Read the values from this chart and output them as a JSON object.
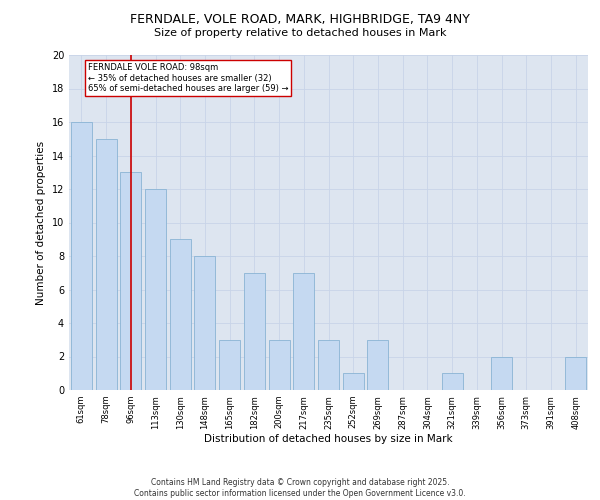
{
  "title_line1": "FERNDALE, VOLE ROAD, MARK, HIGHBRIDGE, TA9 4NY",
  "title_line2": "Size of property relative to detached houses in Mark",
  "xlabel": "Distribution of detached houses by size in Mark",
  "ylabel": "Number of detached properties",
  "categories": [
    "61sqm",
    "78sqm",
    "96sqm",
    "113sqm",
    "130sqm",
    "148sqm",
    "165sqm",
    "182sqm",
    "200sqm",
    "217sqm",
    "235sqm",
    "252sqm",
    "269sqm",
    "287sqm",
    "304sqm",
    "321sqm",
    "339sqm",
    "356sqm",
    "373sqm",
    "391sqm",
    "408sqm"
  ],
  "values": [
    16,
    15,
    13,
    12,
    9,
    8,
    3,
    7,
    3,
    7,
    3,
    1,
    3,
    0,
    0,
    1,
    0,
    2,
    0,
    0,
    2
  ],
  "bar_color": "#c5d9f1",
  "bar_edge_color": "#8ab4d4",
  "vline_x_index": 2,
  "vline_color": "#cc0000",
  "annotation_text": "FERNDALE VOLE ROAD: 98sqm\n← 35% of detached houses are smaller (32)\n65% of semi-detached houses are larger (59) →",
  "annotation_box_color": "white",
  "annotation_box_edge": "#cc0000",
  "ylim": [
    0,
    20
  ],
  "yticks": [
    0,
    2,
    4,
    6,
    8,
    10,
    12,
    14,
    16,
    18,
    20
  ],
  "grid_color": "#c8d4e8",
  "background_color": "#dde5f0",
  "footer_text": "Contains HM Land Registry data © Crown copyright and database right 2025.\nContains public sector information licensed under the Open Government Licence v3.0."
}
